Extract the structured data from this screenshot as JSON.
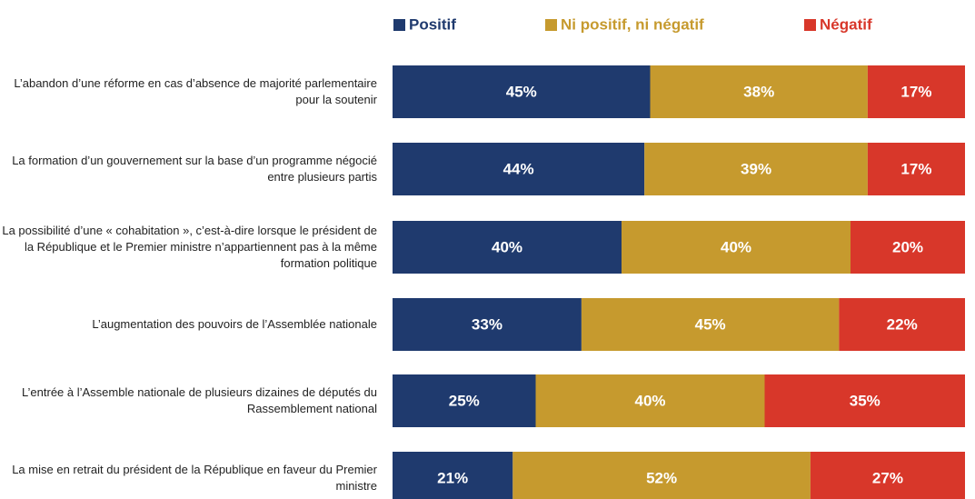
{
  "chart_data": {
    "type": "stacked-bar-horizontal",
    "categories": [
      "L’abandon d’une réforme en cas d’absence de majorité parlementaire pour la soutenir",
      "La formation d’un gouvernement sur la base d’un programme négocié entre plusieurs partis",
      "La possibilité d’une « cohabitation », c’est-à-dire lorsque le président de la République et le Premier ministre n’appartiennent pas à la même formation politique",
      "L’augmentation des pouvoirs de l’Assemblée nationale",
      "L’entrée à l’Assemble nationale de plusieurs dizaines de députés du Rassemblement national",
      "La mise en retrait du président de la République en faveur du Premier ministre"
    ],
    "series": [
      {
        "name": "Positif",
        "color": "#1f3a6e",
        "values": [
          45,
          44,
          40,
          33,
          25,
          21
        ],
        "value_labels": [
          "45%",
          "44%",
          "40%",
          "33%",
          "25%",
          "21%"
        ]
      },
      {
        "name": "Ni positif, ni négatif",
        "color": "#c69a2e",
        "values": [
          38,
          39,
          40,
          45,
          40,
          52
        ],
        "value_labels": [
          "38%",
          "39%",
          "40%",
          "45%",
          "40%",
          "52%"
        ]
      },
      {
        "name": "Négatif",
        "color": "#d8372a",
        "values": [
          17,
          17,
          20,
          22,
          35,
          27
        ],
        "value_labels": [
          "17%",
          "17%",
          "20%",
          "22%",
          "35%",
          "27%"
        ]
      }
    ],
    "xlim": [
      0,
      100
    ]
  }
}
